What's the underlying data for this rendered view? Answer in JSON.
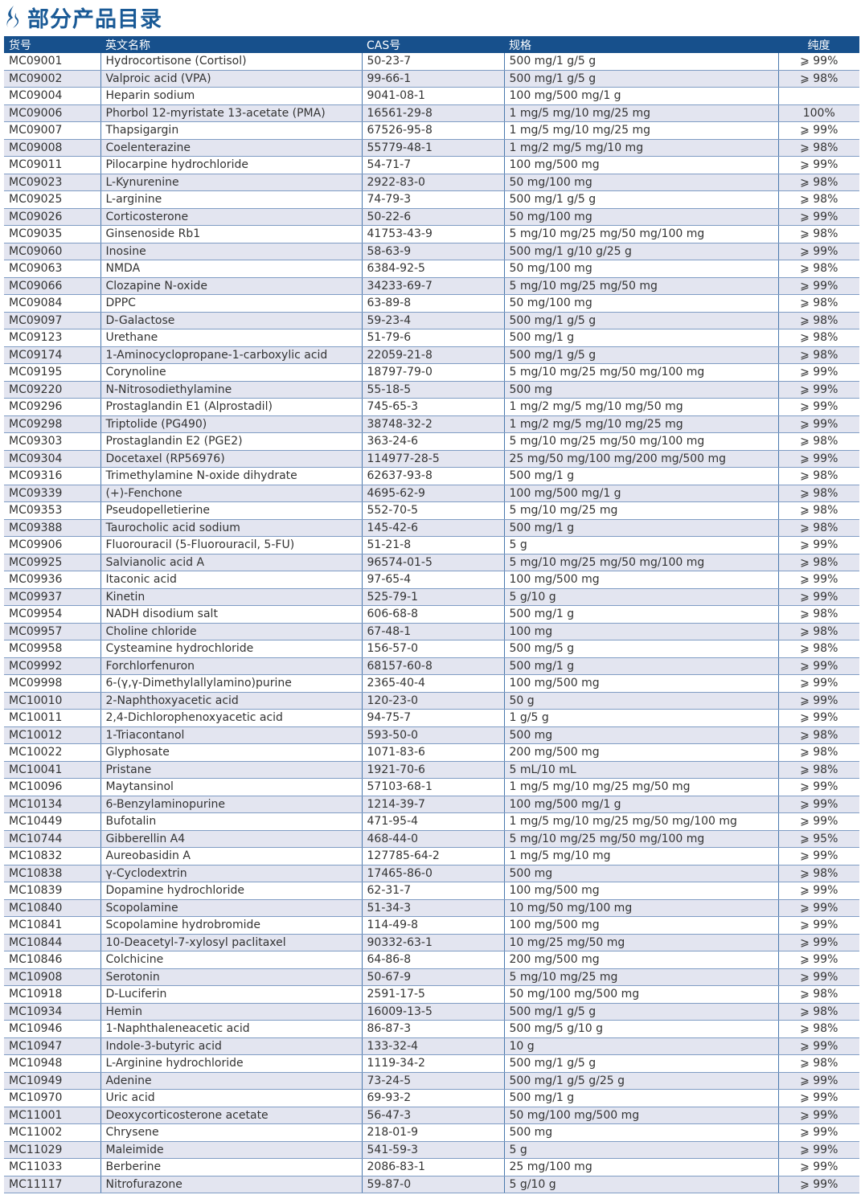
{
  "title": "部分产品目录",
  "colors": {
    "header": "#17508c",
    "alt_row": "#e3e5f0",
    "title": "#1a5a96"
  },
  "columns": [
    "货号",
    "英文名称",
    "CAS号",
    "规格",
    "纯度"
  ],
  "rows": [
    [
      "MC09001",
      "Hydrocortisone (Cortisol)",
      "50-23-7",
      "500 mg/1 g/5 g",
      "⩾ 99%"
    ],
    [
      "MC09002",
      "Valproic acid (VPA)",
      "99-66-1",
      "500 mg/1 g/5 g",
      "⩾ 98%"
    ],
    [
      "MC09004",
      "Heparin sodium",
      "9041-08-1",
      "100 mg/500 mg/1 g",
      ""
    ],
    [
      "MC09006",
      "Phorbol 12-myristate 13-acetate (PMA)",
      "16561-29-8",
      "1 mg/5 mg/10 mg/25 mg",
      "100%"
    ],
    [
      "MC09007",
      "Thapsigargin",
      "67526-95-8",
      "1 mg/5 mg/10 mg/25 mg",
      "⩾ 99%"
    ],
    [
      "MC09008",
      "Coelenterazine",
      "55779-48-1",
      "1 mg/2 mg/5 mg/10 mg",
      "⩾ 98%"
    ],
    [
      "MC09011",
      "Pilocarpine hydrochloride",
      "54-71-7",
      "100 mg/500 mg",
      "⩾ 99%"
    ],
    [
      "MC09023",
      "L-Kynurenine",
      "2922-83-0",
      "50 mg/100 mg",
      "⩾ 98%"
    ],
    [
      "MC09025",
      "L-arginine",
      "74-79-3",
      "500 mg/1 g/5 g",
      "⩾ 98%"
    ],
    [
      "MC09026",
      "Corticosterone",
      "50-22-6",
      "50 mg/100 mg",
      "⩾ 99%"
    ],
    [
      "MC09035",
      "Ginsenoside Rb1",
      "41753-43-9",
      "5 mg/10 mg/25 mg/50 mg/100 mg",
      "⩾ 98%"
    ],
    [
      "MC09060",
      "Inosine",
      "58-63-9",
      "500 mg/1 g/10 g/25 g",
      "⩾ 99%"
    ],
    [
      "MC09063",
      "NMDA",
      "6384-92-5",
      "50 mg/100 mg",
      "⩾ 98%"
    ],
    [
      "MC09066",
      "Clozapine N-oxide",
      "34233-69-7",
      "5 mg/10 mg/25 mg/50 mg",
      "⩾ 99%"
    ],
    [
      "MC09084",
      "DPPC",
      "63-89-8",
      "50 mg/100 mg",
      "⩾ 98%"
    ],
    [
      "MC09097",
      "D-Galactose",
      "59-23-4",
      "500 mg/1 g/5 g",
      "⩾ 98%"
    ],
    [
      "MC09123",
      "Urethane",
      "51-79-6",
      "500 mg/1 g",
      "⩾ 98%"
    ],
    [
      "MC09174",
      "1-Aminocyclopropane-1-carboxylic acid",
      "22059-21-8",
      "500 mg/1 g/5 g",
      "⩾ 98%"
    ],
    [
      "MC09195",
      "Corynoline",
      "18797-79-0",
      "5 mg/10 mg/25 mg/50 mg/100 mg",
      "⩾ 99%"
    ],
    [
      "MC09220",
      "N-Nitrosodiethylamine",
      "55-18-5",
      "500 mg",
      "⩾ 99%"
    ],
    [
      "MC09296",
      "Prostaglandin E1 (Alprostadil)",
      "745-65-3",
      "1 mg/2 mg/5 mg/10 mg/50 mg",
      "⩾ 99%"
    ],
    [
      "MC09298",
      "Triptolide (PG490)",
      "38748-32-2",
      "1 mg/2 mg/5 mg/10 mg/25 mg",
      "⩾ 99%"
    ],
    [
      "MC09303",
      "Prostaglandin E2 (PGE2)",
      "363-24-6",
      "5 mg/10 mg/25 mg/50 mg/100 mg",
      "⩾ 98%"
    ],
    [
      "MC09304",
      "Docetaxel (RP56976)",
      "114977-28-5",
      "25 mg/50 mg/100 mg/200 mg/500 mg",
      "⩾ 99%"
    ],
    [
      "MC09316",
      "Trimethylamine N-oxide dihydrate",
      "62637-93-8",
      "500 mg/1 g",
      "⩾ 98%"
    ],
    [
      "MC09339",
      "(+)-Fenchone",
      "4695-62-9",
      "100 mg/500 mg/1 g",
      "⩾ 98%"
    ],
    [
      "MC09353",
      "Pseudopelletierine",
      "552-70-5",
      "5 mg/10 mg/25 mg",
      "⩾ 98%"
    ],
    [
      "MC09388",
      "Taurocholic acid sodium",
      "145-42-6",
      "500 mg/1 g",
      "⩾ 98%"
    ],
    [
      "MC09906",
      "Fluorouracil (5-Fluorouracil, 5-FU)",
      "51-21-8",
      "5 g",
      "⩾ 99%"
    ],
    [
      "MC09925",
      "Salvianolic acid A",
      "96574-01-5",
      "5 mg/10 mg/25 mg/50 mg/100 mg",
      "⩾ 98%"
    ],
    [
      "MC09936",
      "Itaconic acid",
      "97-65-4",
      "100 mg/500 mg",
      "⩾ 99%"
    ],
    [
      "MC09937",
      "Kinetin",
      "525-79-1",
      "5 g/10 g",
      "⩾ 99%"
    ],
    [
      "MC09954",
      "NADH disodium salt",
      "606-68-8",
      "500 mg/1 g",
      "⩾ 98%"
    ],
    [
      "MC09957",
      "Choline chloride",
      "67-48-1",
      "100 mg",
      "⩾ 98%"
    ],
    [
      "MC09958",
      "Cysteamine hydrochloride",
      "156-57-0",
      "500 mg/5 g",
      "⩾ 98%"
    ],
    [
      "MC09992",
      "Forchlorfenuron",
      "68157-60-8",
      "500 mg/1 g",
      "⩾ 99%"
    ],
    [
      "MC09998",
      "6-(γ,γ-Dimethylallylamino)purine",
      "2365-40-4",
      "100 mg/500 mg",
      "⩾ 99%"
    ],
    [
      "MC10010",
      "2-Naphthoxyacetic acid",
      "120-23-0",
      "50 g",
      "⩾ 99%"
    ],
    [
      "MC10011",
      "2,4-Dichlorophenoxyacetic acid",
      "94-75-7",
      "1 g/5 g",
      "⩾ 99%"
    ],
    [
      "MC10012",
      "1-Triacontanol",
      "593-50-0",
      "500 mg",
      "⩾ 98%"
    ],
    [
      "MC10022",
      "Glyphosate",
      "1071-83-6",
      "200 mg/500 mg",
      "⩾ 98%"
    ],
    [
      "MC10041",
      "Pristane",
      "1921-70-6",
      "5 mL/10 mL",
      "⩾ 98%"
    ],
    [
      "MC10096",
      "Maytansinol",
      "57103-68-1",
      "1 mg/5 mg/10 mg/25 mg/50 mg",
      "⩾ 99%"
    ],
    [
      "MC10134",
      "6-Benzylaminopurine",
      "1214-39-7",
      "100 mg/500 mg/1 g",
      "⩾ 99%"
    ],
    [
      "MC10449",
      "Bufotalin",
      "471-95-4",
      "1 mg/5 mg/10 mg/25 mg/50 mg/100 mg",
      "⩾ 99%"
    ],
    [
      "MC10744",
      "Gibberellin A4",
      "468-44-0",
      "5 mg/10 mg/25 mg/50 mg/100 mg",
      "⩾ 95%"
    ],
    [
      "MC10832",
      "Aureobasidin A",
      "127785-64-2",
      "1 mg/5 mg/10 mg",
      "⩾ 99%"
    ],
    [
      "MC10838",
      "γ-Cyclodextrin",
      "17465-86-0",
      "500 mg",
      "⩾ 98%"
    ],
    [
      "MC10839",
      "Dopamine hydrochloride",
      "62-31-7",
      "100 mg/500 mg",
      "⩾ 99%"
    ],
    [
      "MC10840",
      "Scopolamine",
      "51-34-3",
      "10 mg/50 mg/100 mg",
      "⩾ 99%"
    ],
    [
      "MC10841",
      "Scopolamine hydrobromide",
      "114-49-8",
      "100 mg/500 mg",
      "⩾ 99%"
    ],
    [
      "MC10844",
      "10-Deacetyl-7-xylosyl paclitaxel",
      "90332-63-1",
      "10 mg/25 mg/50 mg",
      "⩾ 99%"
    ],
    [
      "MC10846",
      "Colchicine",
      "64-86-8",
      "200 mg/500 mg",
      "⩾ 99%"
    ],
    [
      "MC10908",
      "Serotonin",
      "50-67-9",
      "5 mg/10 mg/25 mg",
      "⩾ 99%"
    ],
    [
      "MC10918",
      "D-Luciferin",
      "2591-17-5",
      "50 mg/100 mg/500 mg",
      "⩾ 98%"
    ],
    [
      "MC10934",
      "Hemin",
      "16009-13-5",
      "500 mg/1 g/5 g",
      "⩾ 98%"
    ],
    [
      "MC10946",
      "1-Naphthaleneacetic acid",
      "86-87-3",
      "500 mg/5 g/10 g",
      "⩾ 98%"
    ],
    [
      "MC10947",
      "Indole-3-butyric acid",
      "133-32-4",
      "10 g",
      "⩾ 99%"
    ],
    [
      "MC10948",
      "L-Arginine hydrochloride",
      "1119-34-2",
      "500 mg/1 g/5 g",
      "⩾ 98%"
    ],
    [
      "MC10949",
      "Adenine",
      "73-24-5",
      "500 mg/1 g/5 g/25 g",
      "⩾ 99%"
    ],
    [
      "MC10970",
      "Uric acid",
      "69-93-2",
      "500 mg/1 g",
      "⩾ 99%"
    ],
    [
      "MC11001",
      "Deoxycorticosterone acetate",
      "56-47-3",
      "50 mg/100 mg/500 mg",
      "⩾ 99%"
    ],
    [
      "MC11002",
      "Chrysene",
      "218-01-9",
      "500 mg",
      "⩾ 99%"
    ],
    [
      "MC11029",
      "Maleimide",
      "541-59-3",
      "5 g",
      "⩾ 99%"
    ],
    [
      "MC11033",
      "Berberine",
      "2086-83-1",
      "25 mg/100 mg",
      "⩾ 99%"
    ],
    [
      "MC11117",
      "Nitrofurazone",
      "59-87-0",
      "5 g/10 g",
      "⩾ 99%"
    ]
  ]
}
